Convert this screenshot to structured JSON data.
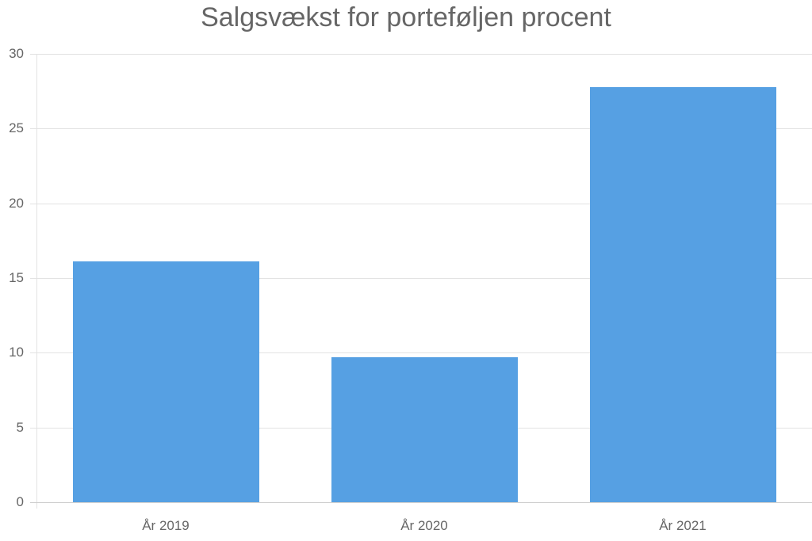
{
  "chart_data": {
    "type": "bar",
    "title": "Salgsvækst for porteføljen procent",
    "xlabel": "",
    "ylabel": "",
    "categories": [
      "År 2019",
      "År 2020",
      "År 2021"
    ],
    "values": [
      16.1,
      9.7,
      27.8
    ],
    "ylim": [
      0,
      30
    ],
    "yticks": [
      0,
      5,
      10,
      15,
      20,
      25,
      30
    ],
    "grid": true,
    "legend": null,
    "bar_color": "#56a0e3"
  }
}
